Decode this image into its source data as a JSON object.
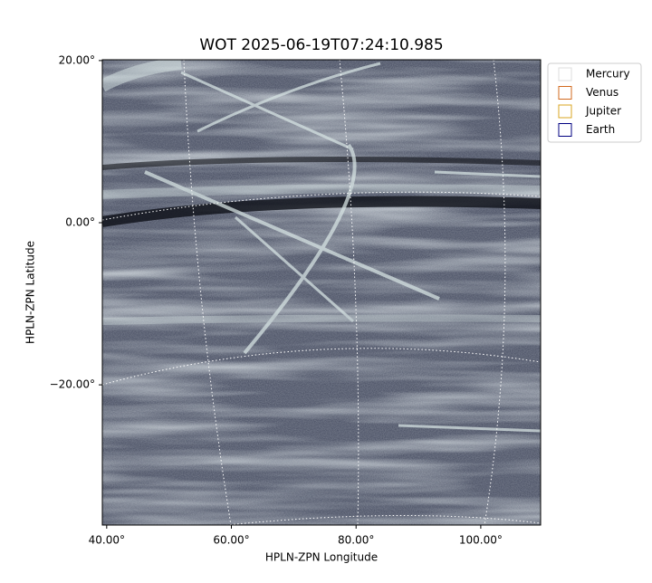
{
  "chart_data": {
    "type": "image",
    "title": "WOT 2025-06-19T07:24:10.985",
    "x_label": "HPLN-ZPN Longitude",
    "y_label": "HPLN-ZPN Latitude",
    "xlim": [
      39.3,
      109.6
    ],
    "ylim": [
      -37.3,
      20.1
    ],
    "xticks": [
      {
        "value": 40,
        "label": "40.00°"
      },
      {
        "value": 60,
        "label": "60.00°"
      },
      {
        "value": 80,
        "label": "80.00°"
      },
      {
        "value": 100,
        "label": "100.00°"
      }
    ],
    "yticks": [
      {
        "value": 20,
        "label": "20.00°"
      },
      {
        "value": 0,
        "label": "0.00°"
      },
      {
        "value": -20,
        "label": "−20.00°"
      }
    ],
    "grid": true,
    "legend": "upper right",
    "series": [
      {
        "name": "Mercury",
        "color": "#dddddd"
      },
      {
        "name": "Venus",
        "color": "#d2691e"
      },
      {
        "name": "Jupiter",
        "color": "#daa520"
      },
      {
        "name": "Earth",
        "color": "#000080"
      }
    ]
  }
}
